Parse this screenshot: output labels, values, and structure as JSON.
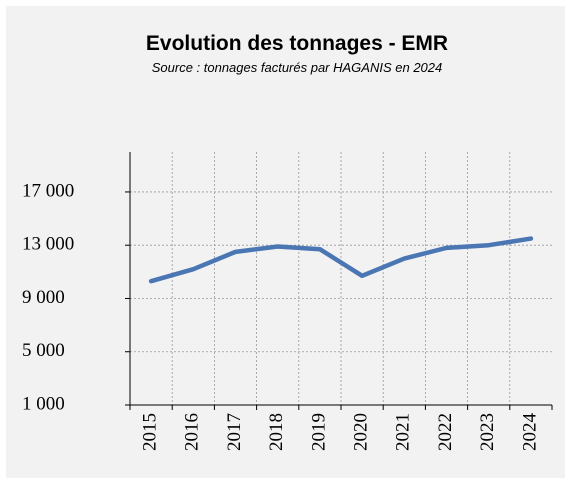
{
  "chart_data": {
    "type": "line",
    "title": "Evolution des tonnages - EMR",
    "subtitle": "Source : tonnages facturés par HAGANIS en 2024",
    "categories": [
      "2015",
      "2016",
      "2017",
      "2018",
      "2019",
      "2020",
      "2021",
      "2022",
      "2023",
      "2024"
    ],
    "series": [
      {
        "name": "EMR",
        "color": "#4a76b4",
        "values": [
          10300,
          11200,
          12500,
          12900,
          12700,
          10700,
          12000,
          12800,
          13000,
          13500
        ]
      }
    ],
    "ylim": [
      1000,
      20000
    ],
    "yticks": [
      {
        "value": 1000,
        "label": "1 000"
      },
      {
        "value": 5000,
        "label": "5 000"
      },
      {
        "value": 9000,
        "label": "9 000"
      },
      {
        "value": 13000,
        "label": "13 000"
      },
      {
        "value": 17000,
        "label": "17 000"
      }
    ],
    "grid": true
  }
}
